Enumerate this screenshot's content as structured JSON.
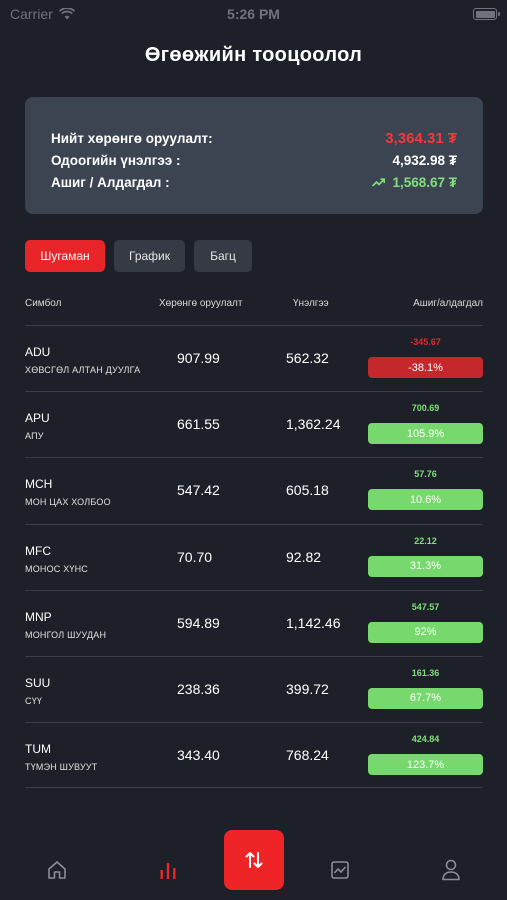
{
  "status_bar": {
    "carrier": "Carrier",
    "time": "5:26 PM"
  },
  "page": {
    "title": "Өгөөжийн тооцоолол"
  },
  "summary": {
    "total_investment_label": "Нийт хөрөнгө оруулалт:",
    "total_investment_value": "3,364.31 ₮",
    "current_value_label": "Одоогийн үнэлгээ :",
    "current_value_value": "4,932.98 ₮",
    "profit_loss_label": "Ашиг / Алдагдал :",
    "profit_loss_value": "1,568.67 ₮",
    "colors": {
      "negative": "#f03a3a",
      "positive": "#7fe07a"
    }
  },
  "tabs": [
    {
      "label": "Шугаман",
      "active": true
    },
    {
      "label": "График",
      "active": false
    },
    {
      "label": "Багц",
      "active": false
    }
  ],
  "table": {
    "headers": {
      "symbol": "Симбол",
      "investment": "Хөрөнгө оруулалт",
      "value": "Үнэлгээ",
      "profit_loss": "Ашиг/алдагдал"
    },
    "rows": [
      {
        "symbol": "ADU",
        "name": "ХӨВСГӨЛ АЛТАН ДУУЛГА",
        "investment": "907.99",
        "value": "562.32",
        "pl_abs": "-345.67",
        "pl_pct": "-38.1%",
        "positive": false
      },
      {
        "symbol": "APU",
        "name": "АПУ",
        "investment": "661.55",
        "value": "1,362.24",
        "pl_abs": "700.69",
        "pl_pct": "105.9%",
        "positive": true
      },
      {
        "symbol": "MCH",
        "name": "МОН ЦАХ ХОЛБОО",
        "investment": "547.42",
        "value": "605.18",
        "pl_abs": "57.76",
        "pl_pct": "10.6%",
        "positive": true
      },
      {
        "symbol": "MFC",
        "name": "МОНОС ХҮНС",
        "investment": "70.70",
        "value": "92.82",
        "pl_abs": "22.12",
        "pl_pct": "31.3%",
        "positive": true
      },
      {
        "symbol": "MNP",
        "name": "МОНГОЛ ШУУДАН",
        "investment": "594.89",
        "value": "1,142.46",
        "pl_abs": "547.57",
        "pl_pct": "92%",
        "positive": true
      },
      {
        "symbol": "SUU",
        "name": "СҮҮ",
        "investment": "238.36",
        "value": "399.72",
        "pl_abs": "161.36",
        "pl_pct": "67.7%",
        "positive": true
      },
      {
        "symbol": "TUM",
        "name": "ТҮМЭН ШУВУУТ",
        "investment": "343.40",
        "value": "768.24",
        "pl_abs": "424.84",
        "pl_pct": "123.7%",
        "positive": true
      }
    ]
  },
  "bottom_nav": {
    "items": [
      {
        "icon": "home-icon"
      },
      {
        "icon": "bar-chart-icon",
        "active": true
      },
      {
        "icon": "swap-icon",
        "primary": true
      },
      {
        "icon": "image-chart-icon"
      },
      {
        "icon": "user-icon"
      }
    ],
    "accent_color": "#ef2427"
  }
}
